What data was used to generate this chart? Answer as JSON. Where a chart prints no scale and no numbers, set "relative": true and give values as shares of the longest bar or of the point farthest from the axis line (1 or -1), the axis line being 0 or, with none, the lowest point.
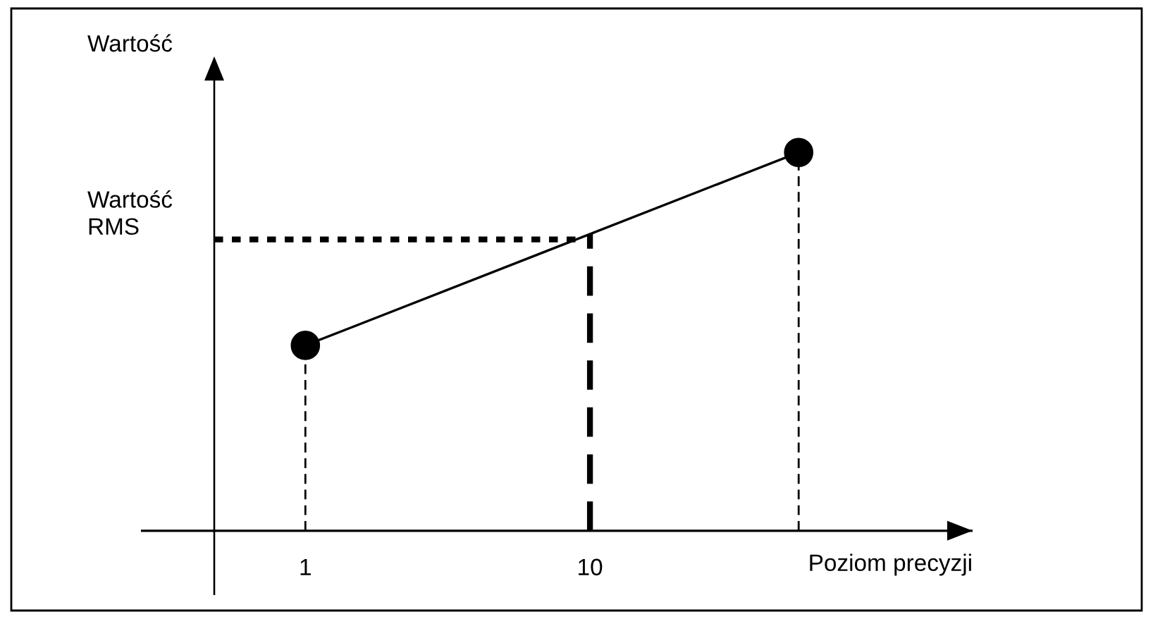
{
  "chart_data": {
    "type": "line",
    "relative": true,
    "ylabel": "Wartość",
    "xlabel": "Poziom precyzji",
    "x": [
      1,
      16.6
    ],
    "values": [
      0.49,
      1
    ],
    "color": "#000000",
    "marker": "circle",
    "line_style": "solid",
    "xlim": [
      -4.2,
      22.1
    ],
    "xticks": [
      1,
      10
    ],
    "grid": false,
    "legend": false,
    "ref_lines": [
      {
        "axis": "y",
        "value": 0.77,
        "label": "Wartość\nRMS",
        "line_style": "dotted",
        "color": "#000000"
      },
      {
        "axis": "x",
        "value": 10,
        "line_style": "dashed",
        "color": "#000000"
      },
      {
        "axis": "x",
        "value": 1,
        "line_style": "dashed",
        "color": "#000000"
      },
      {
        "axis": "x",
        "value": 16.6,
        "line_style": "dashed",
        "color": "#000000"
      }
    ]
  }
}
